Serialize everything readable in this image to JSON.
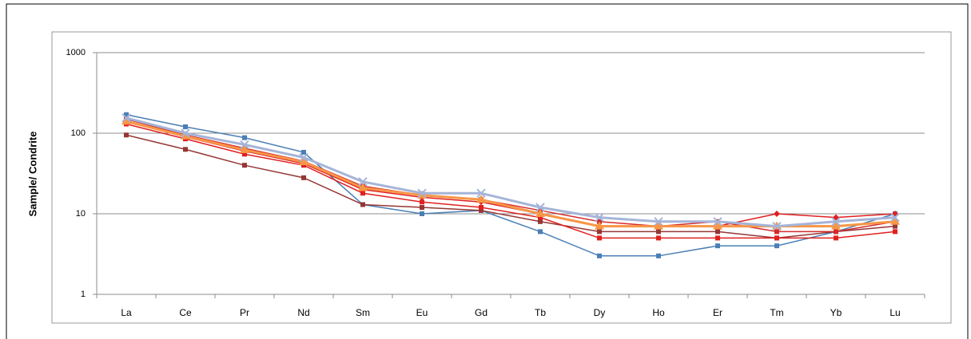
{
  "chart_data": {
    "type": "line",
    "ylabel": "Sample/ Condrite",
    "categories": [
      "La",
      "Ce",
      "Pr",
      "Nd",
      "Sm",
      "Eu",
      "Gd",
      "Tb",
      "Dy",
      "Ho",
      "Er",
      "Tm",
      "Yb",
      "Lu"
    ],
    "ylim": [
      1,
      1000
    ],
    "yticks": [
      1,
      10,
      100,
      1000
    ],
    "log_scale": true,
    "grid": true,
    "series": [
      {
        "color": "#4a7fb5",
        "marker": "square",
        "values": [
          170,
          120,
          88,
          58,
          13,
          10,
          11,
          6,
          3,
          3,
          4,
          4,
          6,
          10
        ]
      },
      {
        "color": "#953735",
        "marker": "square",
        "values": [
          95,
          63,
          40,
          28,
          13,
          12,
          11,
          8,
          6,
          6,
          6,
          5,
          6,
          7
        ]
      },
      {
        "color": "#e02020",
        "marker": "square",
        "values": [
          130,
          85,
          55,
          40,
          18,
          14,
          12,
          9,
          5,
          5,
          5,
          5,
          5,
          6
        ]
      },
      {
        "color": "#e02020",
        "marker": "diamond",
        "values": [
          140,
          90,
          60,
          42,
          20,
          16,
          14,
          10,
          7,
          7,
          7,
          10,
          9,
          10
        ]
      },
      {
        "color": "#d42a2a",
        "marker": "square",
        "values": [
          150,
          95,
          65,
          45,
          22,
          17,
          15,
          11,
          8,
          7,
          8,
          6,
          6,
          8
        ]
      },
      {
        "color": "#f79646",
        "marker": "triangle",
        "values": [
          140,
          92,
          62,
          44,
          21,
          17,
          15,
          10,
          7,
          7,
          7,
          7,
          7,
          8
        ]
      },
      {
        "color": "#a5b4d8",
        "marker": "x",
        "values": [
          155,
          100,
          72,
          50,
          25,
          18,
          18,
          12,
          9,
          8,
          8,
          7,
          8,
          9
        ]
      }
    ]
  }
}
